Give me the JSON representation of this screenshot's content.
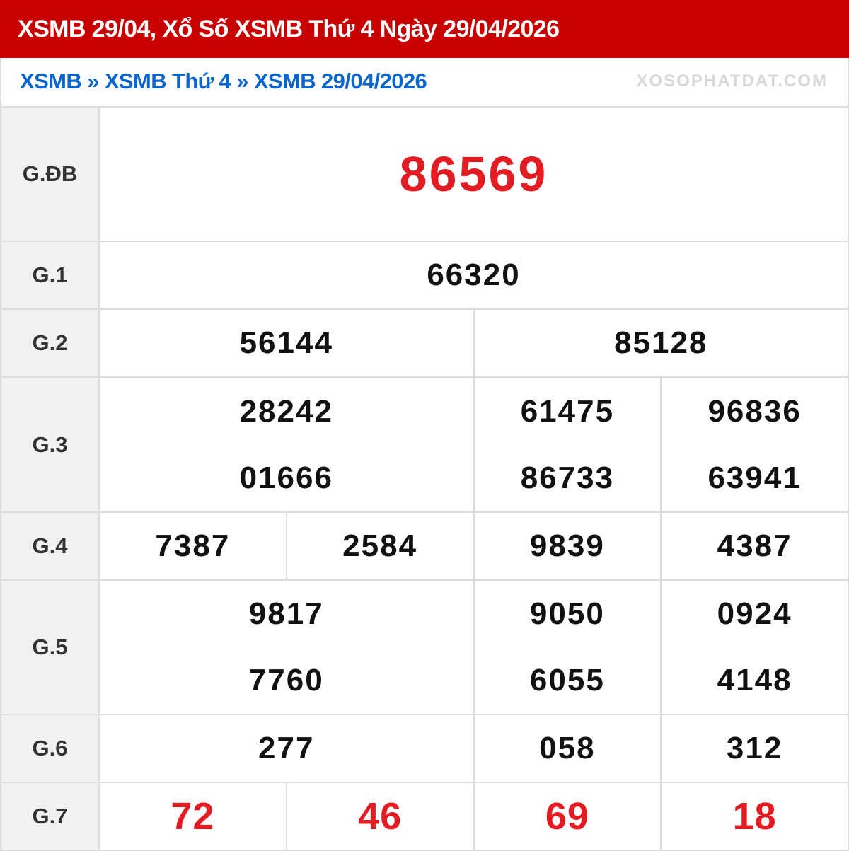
{
  "header": {
    "title": "XSMB 29/04, Xổ Số XSMB Thứ 4 Ngày 29/04/2026"
  },
  "breadcrumb": {
    "items": [
      "XSMB",
      "XSMB Thứ 4",
      "XSMB 29/04/2026"
    ],
    "separator": "»"
  },
  "results": {
    "gdb": {
      "label": "G.ĐB",
      "numbers": [
        "86569"
      ]
    },
    "g1": {
      "label": "G.1",
      "numbers": [
        "66320"
      ]
    },
    "g2": {
      "label": "G.2",
      "numbers": [
        "56144",
        "85128"
      ]
    },
    "g3": {
      "label": "G.3",
      "numbers": [
        "28242",
        "61475",
        "96836",
        "01666",
        "86733",
        "63941"
      ]
    },
    "g4": {
      "label": "G.4",
      "numbers": [
        "7387",
        "2584",
        "9839",
        "4387"
      ]
    },
    "g5": {
      "label": "G.5",
      "numbers": [
        "9817",
        "9050",
        "0924",
        "7760",
        "6055",
        "4148"
      ]
    },
    "g6": {
      "label": "G.6",
      "numbers": [
        "277",
        "058",
        "312"
      ]
    },
    "g7": {
      "label": "G.7",
      "numbers": [
        "72",
        "46",
        "69",
        "18"
      ]
    }
  },
  "watermark": "XOSOPHATDAT.COM",
  "colors": {
    "header_bg": "#c80000",
    "link": "#0a66cc",
    "highlight": "#e31b23"
  }
}
